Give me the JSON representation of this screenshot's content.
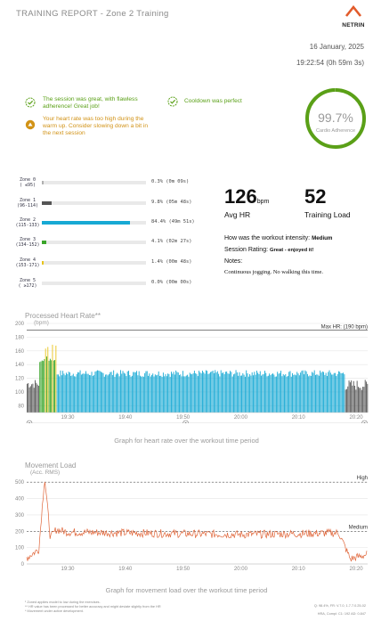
{
  "header": {
    "title": "TRAINING REPORT - Zone 2 Training",
    "logo_text": "NETRIN"
  },
  "session": {
    "date": "16 January, 2025",
    "time": "19:22:54 (0h 59m 3s)"
  },
  "feedback": [
    {
      "icon": "check-badge-icon",
      "color": "#5aa017",
      "text": "The session was great, with flawless adherence! Great job!"
    },
    {
      "icon": "check-badge-icon",
      "color": "#5aa017",
      "text": "Cooldown was perfect"
    },
    {
      "icon": "warning-badge-icon",
      "color": "#d19216",
      "text": "Your heart rate was too high during the warm up. Consider slowing down a bit in the next session"
    }
  ],
  "adherence": {
    "value": "99.7%",
    "label": "Cardio Adherence",
    "fraction": 0.997,
    "color": "#5aa017"
  },
  "zones": [
    {
      "name": "Zone 0",
      "range": "( ≤95)",
      "pct": 0.3,
      "text": "0.3% (0m 09s)",
      "color": "#b0b0b0"
    },
    {
      "name": "Zone 1",
      "range": "(96-114)",
      "pct": 9.8,
      "text": "9.8% (05m 48s)",
      "color": "#555555"
    },
    {
      "name": "Zone 2",
      "range": "(115-133)",
      "pct": 84.4,
      "text": "84.4% (49m 51s)",
      "color": "#17a9d4"
    },
    {
      "name": "Zone 3",
      "range": "(134-152)",
      "pct": 4.1,
      "text": "4.1% (02m 27s)",
      "color": "#3aa52a"
    },
    {
      "name": "Zone 4",
      "range": "(153-171)",
      "pct": 1.4,
      "text": "1.4% (00m 48s)",
      "color": "#e8c41b"
    },
    {
      "name": "Zone 5",
      "range": "( ≥172)",
      "pct": 0.0,
      "text": "0.0% (00m 00s)",
      "color": "#e25b2b"
    }
  ],
  "stats": {
    "avg_hr": "126",
    "avg_hr_unit": "bpm",
    "avg_hr_label": "Avg HR",
    "load": "52",
    "load_label": "Training Load"
  },
  "questions": {
    "intensity_q": "How was the workout intensity:",
    "intensity_a": "Medium",
    "rating_q": "Session Rating:",
    "rating_a": "Great - enjoyed it!",
    "notes_label": "Notes:",
    "notes_text": "Continuous jogging. No walking this time."
  },
  "hr_chart": {
    "title": "Processed Heart Rate**",
    "unit": "(bpm)",
    "max_label": "Max HR: (190 bpm)",
    "caption": "Graph for heart rate over the workout time period",
    "icons": [
      "warmup-icon",
      "exercise-icon",
      "cooldown-icon"
    ]
  },
  "load_chart": {
    "title": "Movement Load",
    "unit": "(Acc. RMS)",
    "high_label": "High",
    "medium_label": "Medium",
    "caption": "Graph for movement load over the workout time period"
  },
  "chart_data": [
    {
      "type": "area",
      "title": "Processed Heart Rate**",
      "ylabel": "(bpm)",
      "ylim": [
        70,
        200
      ],
      "yticks": [
        80,
        100,
        120,
        140,
        160,
        180,
        200
      ],
      "xticks": [
        "19:30",
        "19:40",
        "19:50",
        "20:00",
        "20:10",
        "20:20"
      ],
      "reference_line": {
        "value": 190,
        "label": "Max HR: (190 bpm)"
      },
      "series": [
        {
          "name": "Zone 1",
          "color": "#555555",
          "x": [
            "19:23",
            "19:25",
            "20:18",
            "20:22"
          ],
          "y": [
            107,
            112,
            108,
            104
          ]
        },
        {
          "name": "Zone 2",
          "color": "#17a9d4",
          "x": [
            "19:28",
            "19:35",
            "19:45",
            "19:55",
            "20:05",
            "20:15"
          ],
          "y": [
            128,
            127,
            126,
            127,
            127,
            125
          ]
        },
        {
          "name": "Zone 3",
          "color": "#3aa52a",
          "x": [
            "19:25",
            "19:26",
            "19:27"
          ],
          "y": [
            138,
            148,
            145
          ]
        },
        {
          "name": "Zone 4",
          "color": "#e8c41b",
          "x": [
            "19:26",
            "19:27"
          ],
          "y": [
            163,
            160
          ]
        }
      ]
    },
    {
      "type": "line",
      "title": "Movement Load",
      "ylabel": "(Acc. RMS)",
      "ylim": [
        0,
        550
      ],
      "yticks": [
        0,
        100,
        200,
        300,
        400,
        500
      ],
      "xticks": [
        "19:30",
        "19:40",
        "19:50",
        "20:00",
        "20:10",
        "20:20"
      ],
      "reference_lines": [
        {
          "value": 500,
          "label": "High"
        },
        {
          "value": 200,
          "label": "Medium"
        }
      ],
      "series": [
        {
          "name": "Movement Load",
          "color": "#e0663a",
          "x": [
            "19:23",
            "19:25",
            "19:26",
            "19:27",
            "19:28",
            "19:30",
            "19:40",
            "19:50",
            "20:00",
            "20:10",
            "20:17",
            "20:19",
            "20:22"
          ],
          "y": [
            40,
            90,
            530,
            160,
            210,
            195,
            190,
            185,
            180,
            185,
            190,
            30,
            60
          ]
        }
      ]
    }
  ],
  "footer": {
    "left": [
      "¹ Zoned applies model to low during the exercises.",
      "** HR value has been processed for better accuracy and might deviate slightly from the HR",
      "* Movement under active development."
    ],
    "right": [
      "Q: 98.4%, FR: V.7.0, 1.7.7.0.25-02",
      "HRA, Compl: C1: 192 AD: 0.847"
    ]
  }
}
